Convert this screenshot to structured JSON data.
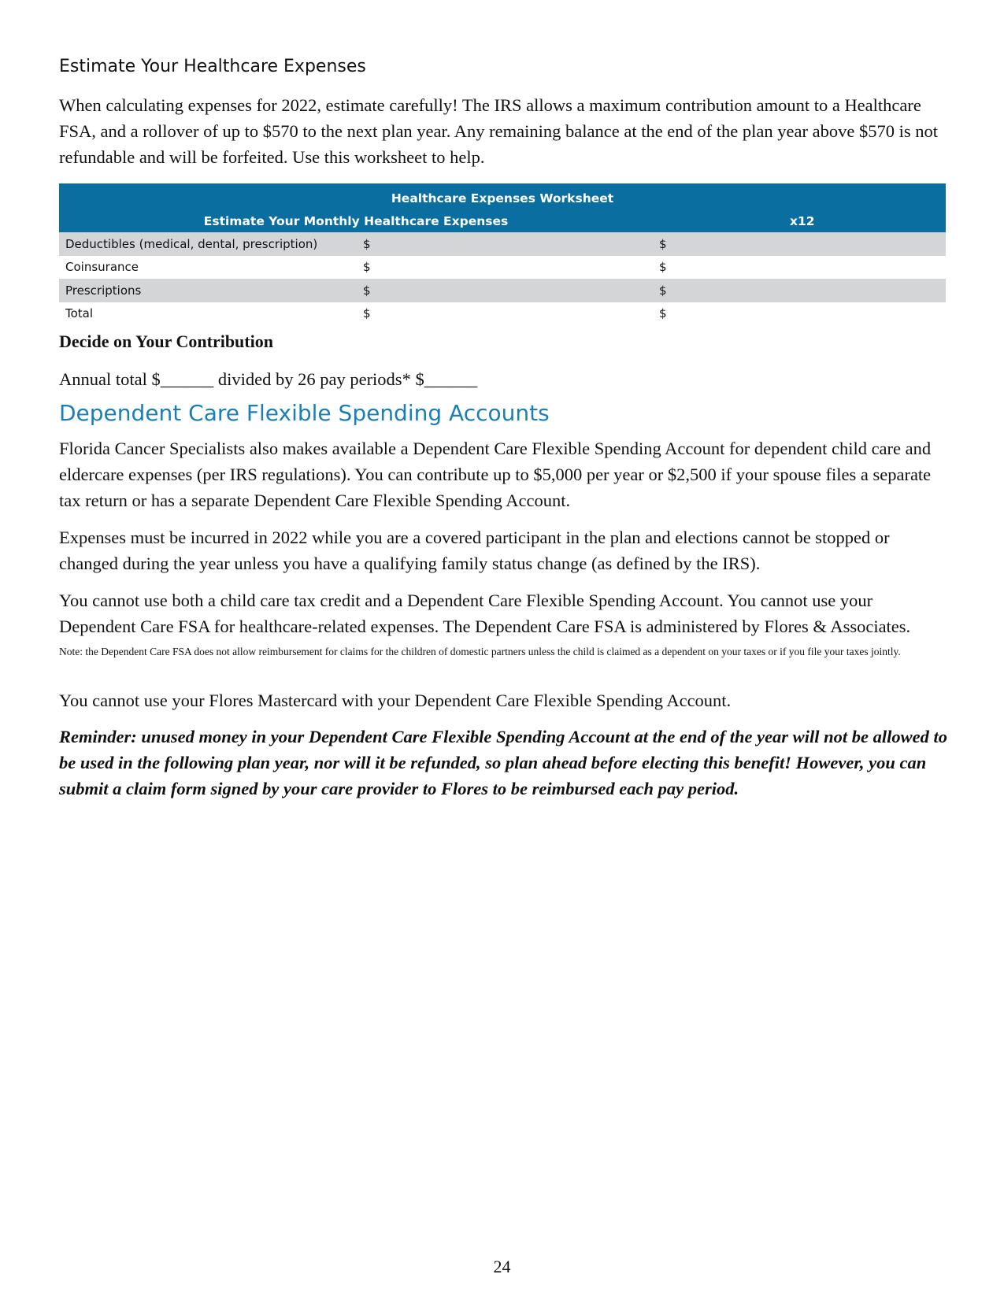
{
  "section1": {
    "heading": "Estimate Your Healthcare Expenses",
    "intro": "When calculating expenses for 2022, estimate carefully! The IRS allows a maximum contribution amount to a Healthcare FSA, and a rollover of up to $570 to the next plan year. Any remaining balance at the end of the plan year above $570 is not refundable and will be forfeited. Use this worksheet to help."
  },
  "worksheet": {
    "title": "Healthcare Expenses Worksheet",
    "col_monthly": "Estimate Your Monthly Healthcare Expenses",
    "col_annual": "x12",
    "brand_color": "#0a6fa0",
    "rows": [
      {
        "label": "Deductibles (medical, dental, prescription)",
        "monthly": "$",
        "annual": "$"
      },
      {
        "label": "Coinsurance",
        "monthly": "$",
        "annual": "$"
      },
      {
        "label": "Prescriptions",
        "monthly": "$",
        "annual": "$"
      },
      {
        "label": "Total",
        "monthly": "$",
        "annual": "$"
      }
    ]
  },
  "contribution": {
    "heading": "Decide on Your Contribution",
    "line": "Annual total $______ divided by 26 pay periods* $______"
  },
  "section2": {
    "heading": "Dependent Care Flexible Spending Accounts",
    "p1": "Florida Cancer Specialists also makes available a Dependent Care Flexible Spending Account for dependent child care and eldercare expenses (per IRS regulations). You can contribute up to $5,000 per year or $2,500 if your spouse files a separate tax return or has a separate Dependent Care Flexible Spending Account.",
    "p2": "Expenses must be incurred in 2022 while you are a covered participant in the plan and elections cannot be stopped or changed during the year unless you have a qualifying family status change (as defined by the IRS).",
    "p3": "You cannot use both a child care tax credit and a Dependent Care Flexible Spending Account. You cannot use your Dependent Care FSA for healthcare-related expenses. The Dependent Care FSA is administered by Flores & Associates.",
    "note": "Note: the Dependent Care FSA does not allow reimbursement for claims for the children of domestic partners unless the child is claimed as a dependent on your taxes or if you file your taxes jointly.",
    "p4": "You cannot use your Flores Mastercard with your Dependent Care Flexible Spending Account.",
    "reminder": "Reminder: unused money in your Dependent Care Flexible Spending Account at the end of the year will not be allowed to be used in the following plan year, nor will it be refunded, so plan ahead before electing this benefit! However, you can submit a claim form signed by your care provider to Flores to be reimbursed each pay period."
  },
  "page_number": "24"
}
